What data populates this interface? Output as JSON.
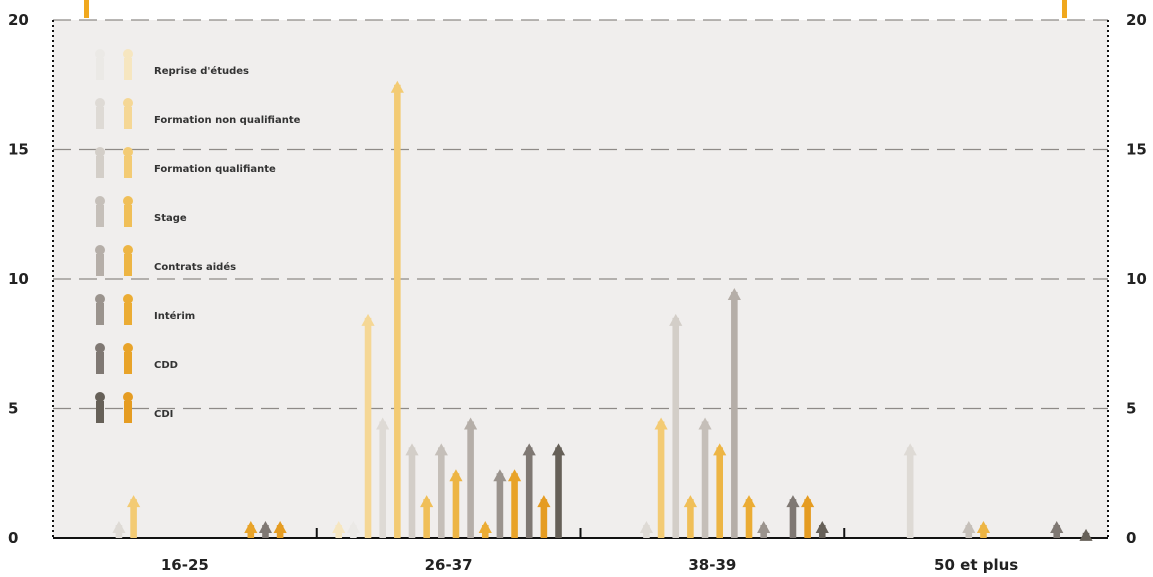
{
  "chart_data": {
    "type": "bar",
    "title": "",
    "xlabel": "",
    "ylabel": "",
    "ylim": [
      0,
      20
    ],
    "yticks": [
      "0",
      "5",
      "10",
      "15",
      "20"
    ],
    "grid": true,
    "legend_position": "top-left, inside plot",
    "categories": [
      "16-25",
      "26-37",
      "38-39",
      "50 et plus"
    ],
    "series": [
      {
        "name": "Reprise d'études",
        "color_men": "#ebe9e6",
        "color_women": "#f6e6c0",
        "men": [
          0,
          0.5,
          0,
          0
        ],
        "women": [
          0,
          0.5,
          0,
          0
        ]
      },
      {
        "name": "Formation non qualifiante",
        "color_men": "#dedad5",
        "color_women": "#f5d795",
        "men": [
          0.5,
          4.5,
          0.5,
          3.5
        ],
        "women": [
          0,
          8.5,
          0,
          0
        ]
      },
      {
        "name": "Formation qualifiante",
        "color_men": "#d3cec8",
        "color_women": "#f3cb74",
        "men": [
          0,
          3.5,
          8.5,
          0
        ],
        "women": [
          1.5,
          17.5,
          4.5,
          0
        ]
      },
      {
        "name": "Stage",
        "color_men": "#c5bfb9",
        "color_women": "#f0bf58",
        "men": [
          0,
          3.5,
          4.5,
          0.5
        ],
        "women": [
          0,
          1.5,
          1.5,
          0
        ]
      },
      {
        "name": "Contrats aidés",
        "color_men": "#b5aea8",
        "color_women": "#edb544",
        "men": [
          0,
          4.5,
          9.5,
          0
        ],
        "women": [
          0,
          2.5,
          3.5,
          0.5
        ]
      },
      {
        "name": "Intérim",
        "color_men": "#9a938d",
        "color_women": "#ebac34",
        "men": [
          0,
          2.5,
          0.5,
          0
        ],
        "women": [
          0,
          0.5,
          1.5,
          0
        ]
      },
      {
        "name": "CDD",
        "color_men": "#7f7873",
        "color_women": "#e8a329",
        "men": [
          0.5,
          3.5,
          1.5,
          0.5
        ],
        "women": [
          0.5,
          2.5,
          0,
          0
        ]
      },
      {
        "name": "CDI",
        "color_men": "#666058",
        "color_women": "#e59c22",
        "men": [
          0,
          3.5,
          0.5,
          0.2
        ],
        "women": [
          0.5,
          1.5,
          1.5,
          0
        ]
      }
    ]
  },
  "accent_color": "#f0a81e",
  "plot_bg": "#f0eeed",
  "grid_color": "#8e8a87"
}
